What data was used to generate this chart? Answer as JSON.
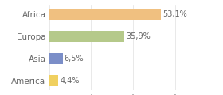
{
  "categories": [
    "Africa",
    "Europa",
    "Asia",
    "America"
  ],
  "values": [
    53.1,
    35.9,
    6.5,
    4.4
  ],
  "labels": [
    "53,1%",
    "35,9%",
    "6,5%",
    "4,4%"
  ],
  "bar_colors": [
    "#f0c080",
    "#b5c98a",
    "#7b8ec8",
    "#f0d060"
  ],
  "background_color": "#ffffff",
  "xlim": [
    0,
    70
  ],
  "label_fontsize": 7,
  "tick_fontsize": 7.5,
  "text_color": "#666666",
  "grid_color": "#e0e0e0",
  "bar_height": 0.5
}
